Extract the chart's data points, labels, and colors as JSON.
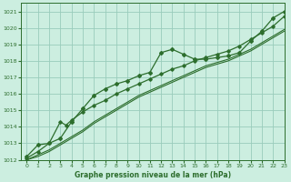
{
  "xlabel": "Graphe pression niveau de la mer (hPa)",
  "xlim": [
    -0.5,
    23
  ],
  "ylim": [
    1012,
    1021.5
  ],
  "yticks": [
    1012,
    1013,
    1014,
    1015,
    1016,
    1017,
    1018,
    1019,
    1020,
    1021
  ],
  "xticks": [
    0,
    1,
    2,
    3,
    4,
    5,
    6,
    7,
    8,
    9,
    10,
    11,
    12,
    13,
    14,
    15,
    16,
    17,
    18,
    19,
    20,
    21,
    22,
    23
  ],
  "background_color": "#cceee0",
  "grid_color": "#99ccbb",
  "line_color": "#2d6e2d",
  "series1_x": [
    0,
    1,
    2,
    3,
    4,
    5,
    6,
    7,
    8,
    9,
    10,
    11,
    12,
    13,
    14,
    15,
    16,
    17,
    18,
    19,
    20,
    21,
    22,
    23
  ],
  "series1_y": [
    1012.2,
    1012.9,
    1013.0,
    1013.3,
    1014.3,
    1015.1,
    1015.9,
    1016.3,
    1016.6,
    1016.8,
    1017.1,
    1017.3,
    1018.5,
    1018.7,
    1018.4,
    1018.1,
    1018.1,
    1018.2,
    1018.3,
    1018.5,
    1019.2,
    1019.8,
    1020.6,
    1021.0
  ],
  "series2_x": [
    0,
    1,
    2,
    3,
    3.5,
    4,
    5,
    6,
    7,
    8,
    9,
    10,
    11,
    12,
    13,
    14,
    15,
    16,
    17,
    18,
    19,
    20,
    21,
    22,
    23
  ],
  "series2_y": [
    1012.1,
    1012.5,
    1013.0,
    1014.3,
    1014.1,
    1014.4,
    1014.9,
    1015.3,
    1015.6,
    1016.0,
    1016.3,
    1016.6,
    1016.9,
    1017.2,
    1017.5,
    1017.7,
    1018.0,
    1018.2,
    1018.4,
    1018.6,
    1018.9,
    1019.3,
    1019.7,
    1020.1,
    1020.7
  ],
  "series3_x": [
    0,
    1,
    2,
    3,
    4,
    5,
    6,
    7,
    8,
    9,
    10,
    11,
    12,
    13,
    14,
    15,
    16,
    17,
    18,
    19,
    20,
    21,
    22,
    23
  ],
  "series3_y": [
    1012.0,
    1012.3,
    1012.6,
    1013.0,
    1013.4,
    1013.8,
    1014.3,
    1014.7,
    1015.1,
    1015.5,
    1015.9,
    1016.2,
    1016.5,
    1016.8,
    1017.1,
    1017.4,
    1017.7,
    1017.9,
    1018.1,
    1018.4,
    1018.7,
    1019.1,
    1019.5,
    1019.9
  ],
  "series4_x": [
    0,
    1,
    2,
    3,
    4,
    5,
    6,
    7,
    8,
    9,
    10,
    11,
    12,
    13,
    14,
    15,
    16,
    17,
    18,
    19,
    20,
    21,
    22,
    23
  ],
  "series4_y": [
    1012.0,
    1012.2,
    1012.5,
    1012.9,
    1013.3,
    1013.7,
    1014.2,
    1014.6,
    1015.0,
    1015.4,
    1015.8,
    1016.1,
    1016.4,
    1016.7,
    1017.0,
    1017.3,
    1017.6,
    1017.8,
    1018.0,
    1018.3,
    1018.6,
    1019.0,
    1019.4,
    1019.8
  ]
}
